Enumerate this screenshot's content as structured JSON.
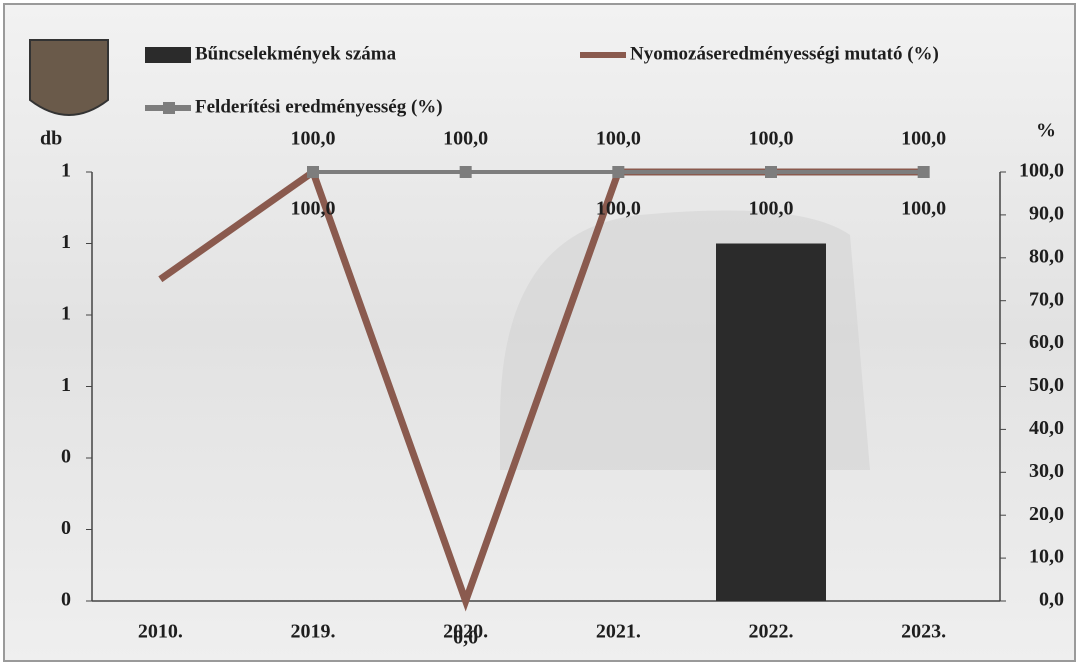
{
  "chart_data": {
    "type": "combo",
    "categories": [
      "2010.",
      "2019.",
      "2020.",
      "2021.",
      "2022.",
      "2023."
    ],
    "y_label": "db",
    "y2_label": "%",
    "ylim": [
      0,
      1.2
    ],
    "yticks": [
      {
        "value": 0,
        "label": "0"
      },
      {
        "value": 0.2,
        "label": "0"
      },
      {
        "value": 0.4,
        "label": "0"
      },
      {
        "value": 0.6,
        "label": "1"
      },
      {
        "value": 0.8,
        "label": "1"
      },
      {
        "value": 1.0,
        "label": "1"
      },
      {
        "value": 1.2,
        "label": "1"
      }
    ],
    "y2lim": [
      0,
      100
    ],
    "y2ticks": [
      {
        "value": 0,
        "label": "0,0"
      },
      {
        "value": 10,
        "label": "10,0"
      },
      {
        "value": 20,
        "label": "20,0"
      },
      {
        "value": 30,
        "label": "30,0"
      },
      {
        "value": 40,
        "label": "40,0"
      },
      {
        "value": 50,
        "label": "50,0"
      },
      {
        "value": 60,
        "label": "60,0"
      },
      {
        "value": 70,
        "label": "70,0"
      },
      {
        "value": 80,
        "label": "80,0"
      },
      {
        "value": 90,
        "label": "90,0"
      },
      {
        "value": 100,
        "label": "100,0"
      }
    ],
    "series": [
      {
        "name": "Bűncselekmények száma",
        "type": "bar",
        "color": "#2b2b2b",
        "values": [
          0,
          0,
          0,
          0,
          1,
          0
        ]
      },
      {
        "name": "Nyomozáseredményességi mutató (%)",
        "type": "line",
        "axis": "y2",
        "color": "#8a5a4e",
        "values": [
          75,
          100,
          0,
          100,
          100,
          100
        ],
        "value_labels": [
          null,
          "100,0",
          "0,0",
          "100,0",
          "100,0",
          "100,0"
        ]
      },
      {
        "name": "Felderítési eredményesség (%)",
        "type": "line",
        "axis": "y2",
        "color": "#7d7d7d",
        "marker": "square",
        "values": [
          null,
          100,
          100,
          100,
          100,
          100
        ],
        "value_labels": [
          null,
          "100,0",
          "100,0",
          "100,0",
          "100,0",
          "100,0"
        ]
      }
    ]
  }
}
